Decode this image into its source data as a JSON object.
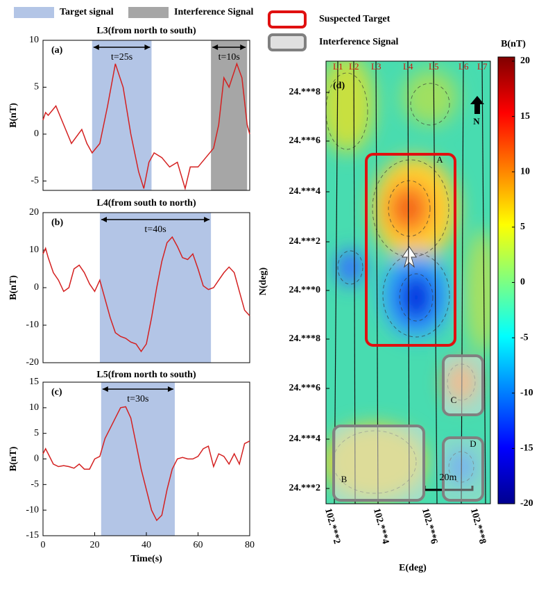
{
  "legend": [
    {
      "name": "Target signal",
      "color": "#b3c5e6"
    },
    {
      "name": "Interference Signal",
      "color": "#a6a6a6"
    }
  ],
  "chart_data": [
    {
      "type": "line",
      "title": "L3(from north to south)",
      "panel": "(a)",
      "ylabel": "B(nT)",
      "xlim": [
        0,
        80
      ],
      "ylim": [
        -6,
        10
      ],
      "yticks": [
        -5,
        0,
        5,
        10
      ],
      "series": [
        {
          "color": "#d42020",
          "x": [
            0,
            1,
            2,
            5,
            8,
            11,
            15,
            17,
            19,
            22,
            25,
            28,
            31,
            34,
            37,
            39,
            41,
            43,
            46,
            49,
            52,
            55,
            57,
            60,
            63,
            66,
            68,
            70,
            72,
            75,
            77,
            79,
            80
          ],
          "values": [
            1.5,
            2.3,
            2,
            3,
            1,
            -1,
            0.5,
            -1,
            -2,
            -1,
            3,
            7.5,
            5,
            0,
            -4,
            -5.8,
            -3,
            -2,
            -2.5,
            -3.5,
            -3,
            -5.8,
            -3.5,
            -3.5,
            -2.5,
            -1.5,
            1,
            6,
            5,
            7.5,
            6,
            1,
            0
          ]
        }
      ],
      "spans": [
        {
          "color": "#b3c5e6",
          "x": [
            19,
            42
          ],
          "label": "t=25s"
        },
        {
          "color": "#a6a6a6",
          "x": [
            65,
            79
          ],
          "label": "t=10s"
        }
      ]
    },
    {
      "type": "line",
      "title": "L4(from south to north)",
      "panel": "(b)",
      "ylabel": "B(nT)",
      "xlim": [
        0,
        80
      ],
      "ylim": [
        -20,
        20
      ],
      "yticks": [
        -20,
        -10,
        0,
        10,
        20
      ],
      "series": [
        {
          "color": "#d42020",
          "x": [
            0,
            1,
            2,
            4,
            6,
            8,
            10,
            12,
            14,
            16,
            18,
            20,
            22,
            24,
            26,
            28,
            30,
            32,
            34,
            36,
            38,
            40,
            42,
            44,
            46,
            48,
            50,
            52,
            54,
            56,
            58,
            60,
            62,
            64,
            66,
            68,
            70,
            72,
            74,
            76,
            78,
            80
          ],
          "values": [
            9,
            10.5,
            8,
            4,
            2,
            -1,
            0,
            5,
            6,
            4,
            1,
            -1,
            2,
            -3,
            -8,
            -12,
            -13,
            -13.5,
            -14.5,
            -15,
            -17,
            -15,
            -8,
            0,
            7,
            12,
            13.5,
            11,
            8,
            7.5,
            9,
            5,
            0.5,
            -0.5,
            0,
            2,
            4,
            5.5,
            4,
            -1,
            -6,
            -7.5
          ]
        }
      ],
      "spans": [
        {
          "color": "#b3c5e6",
          "x": [
            22,
            65
          ],
          "label": "t=40s"
        }
      ]
    },
    {
      "type": "line",
      "title": "L5(from north to south)",
      "panel": "(c)",
      "ylabel": "B(nT)",
      "xlabel": "Time(s)",
      "xlim": [
        0,
        80
      ],
      "ylim": [
        -15,
        15
      ],
      "yticks": [
        -15,
        -10,
        -5,
        0,
        5,
        10,
        15
      ],
      "xticks": [
        0,
        20,
        40,
        60,
        80
      ],
      "series": [
        {
          "color": "#d42020",
          "x": [
            0,
            1,
            2,
            4,
            6,
            8,
            10,
            12,
            14,
            16,
            18,
            20,
            22,
            24,
            26,
            28,
            30,
            32,
            34,
            36,
            38,
            40,
            42,
            44,
            46,
            48,
            50,
            52,
            54,
            56,
            58,
            60,
            62,
            64,
            66,
            68,
            70,
            72,
            74,
            76,
            78,
            80
          ],
          "values": [
            1,
            2,
            1,
            -1,
            -1.5,
            -1.3,
            -1.5,
            -1.8,
            -1,
            -2,
            -2,
            0,
            0.5,
            4,
            6,
            8,
            10,
            10.2,
            8,
            3,
            -2,
            -6,
            -10,
            -12,
            -11,
            -6,
            -2,
            0,
            0.3,
            0,
            0,
            0.5,
            2,
            2.5,
            -1.5,
            1,
            0.5,
            -1,
            1,
            -1,
            3,
            3.5
          ]
        }
      ],
      "spans": [
        {
          "color": "#b3c5e6",
          "x": [
            22.5,
            51
          ],
          "label": "t=30s"
        }
      ]
    },
    {
      "type": "contour",
      "panel": "(d)",
      "xlabel": "E(deg)",
      "ylabel": "N(deg)",
      "xtick_labels": [
        "102.***2",
        "102.***4",
        "102.***6",
        "102.***8"
      ],
      "ytick_labels": [
        "24.***8",
        "24.***6",
        "24.***4",
        "24.***2",
        "24.***0",
        "24.***8",
        "24.***6",
        "24.***4",
        "24.***2"
      ],
      "lines": [
        "L1",
        "L2",
        "L3",
        "L4",
        "L5",
        "L6",
        "L7"
      ],
      "regions": [
        {
          "name": "A",
          "color": "#e01010"
        },
        {
          "name": "B",
          "color": "#808080"
        },
        {
          "name": "C",
          "color": "#808080"
        },
        {
          "name": "D",
          "color": "#808080"
        }
      ],
      "north": "N",
      "scale": "20m",
      "legend": [
        {
          "name": "Suspected Target",
          "color": "#e01010"
        },
        {
          "name": "Interference Signal",
          "color": "#808080"
        }
      ],
      "colorbar": {
        "label": "B(nT)",
        "lim": [
          -20,
          20
        ],
        "ticks": [
          -20,
          -15,
          -10,
          -5,
          0,
          5,
          10,
          15,
          20
        ]
      }
    }
  ]
}
